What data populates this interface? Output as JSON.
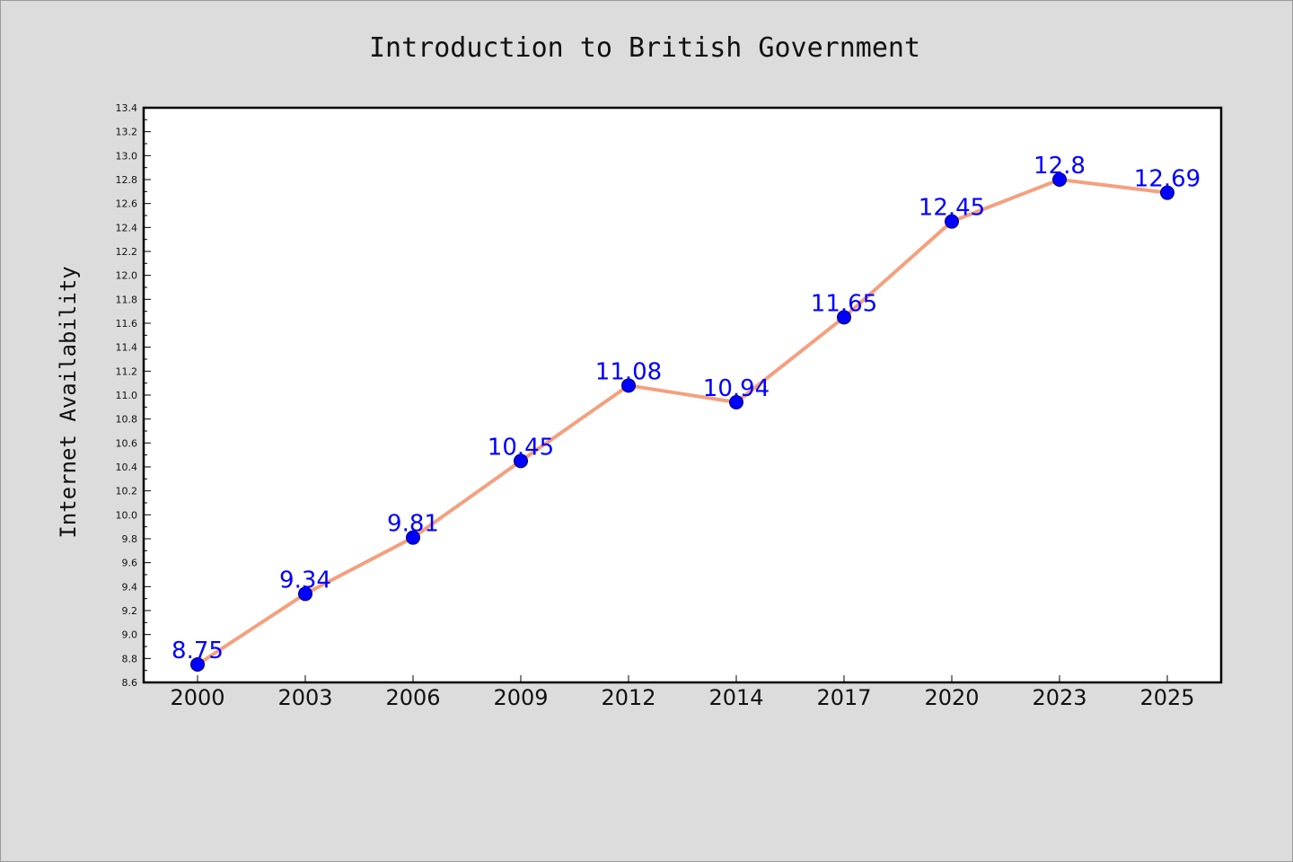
{
  "chart_data": {
    "type": "line",
    "title": "Introduction to British Government",
    "xlabel": "",
    "ylabel": "Internet Availability",
    "categories": [
      "2000",
      "2003",
      "2006",
      "2009",
      "2012",
      "2014",
      "2017",
      "2020",
      "2023",
      "2025"
    ],
    "series": [
      {
        "values": [
          8.75,
          9.34,
          9.81,
          10.45,
          11.08,
          10.94,
          11.65,
          12.45,
          12.8,
          12.69
        ],
        "labels": [
          "8.75",
          "9.34",
          "9.81",
          "10.45",
          "11.08",
          "10.94",
          "11.65",
          "12.45",
          "12.8",
          "12.69"
        ],
        "line_color": "#f4a07e",
        "marker_color": "#0000ff",
        "label_color": "#0000ff"
      }
    ],
    "ylim": [
      8.6,
      13.4
    ],
    "yticks": [
      "8.6",
      "8.8",
      "9.0",
      "9.2",
      "9.4",
      "9.6",
      "9.8",
      "10.0",
      "10.2",
      "10.4",
      "10.6",
      "10.8",
      "11.0",
      "11.2",
      "11.4",
      "11.6",
      "11.8",
      "12.0",
      "12.2",
      "12.4",
      "12.6",
      "12.8",
      "13.0",
      "13.2",
      "13.4"
    ],
    "grid": false,
    "legend": "none",
    "background_color": "#dcdcdc",
    "plot_background_color": "#ffffff"
  }
}
